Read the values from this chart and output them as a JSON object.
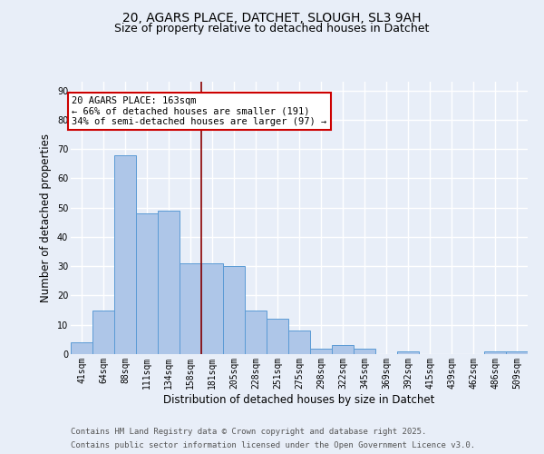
{
  "title1": "20, AGARS PLACE, DATCHET, SLOUGH, SL3 9AH",
  "title2": "Size of property relative to detached houses in Datchet",
  "xlabel": "Distribution of detached houses by size in Datchet",
  "ylabel": "Number of detached properties",
  "bar_labels": [
    "41sqm",
    "64sqm",
    "88sqm",
    "111sqm",
    "134sqm",
    "158sqm",
    "181sqm",
    "205sqm",
    "228sqm",
    "251sqm",
    "275sqm",
    "298sqm",
    "322sqm",
    "345sqm",
    "369sqm",
    "392sqm",
    "415sqm",
    "439sqm",
    "462sqm",
    "486sqm",
    "509sqm"
  ],
  "bar_values": [
    4,
    15,
    68,
    48,
    49,
    31,
    31,
    30,
    15,
    12,
    8,
    2,
    3,
    2,
    0,
    1,
    0,
    0,
    0,
    1,
    1
  ],
  "bar_color": "#aec6e8",
  "bar_edge_color": "#5b9bd5",
  "vline_x": 5.5,
  "vline_color": "#8b0000",
  "annotation_text": "20 AGARS PLACE: 163sqm\n← 66% of detached houses are smaller (191)\n34% of semi-detached houses are larger (97) →",
  "annotation_box_color": "#ffffff",
  "annotation_box_edge_color": "#cc0000",
  "ylim": [
    0,
    93
  ],
  "yticks": [
    0,
    10,
    20,
    30,
    40,
    50,
    60,
    70,
    80,
    90
  ],
  "footer1": "Contains HM Land Registry data © Crown copyright and database right 2025.",
  "footer2": "Contains public sector information licensed under the Open Government Licence v3.0.",
  "plot_bg_color": "#e8eef8",
  "grid_color": "#ffffff",
  "title_fontsize": 10,
  "subtitle_fontsize": 9,
  "axis_label_fontsize": 8.5,
  "tick_fontsize": 7,
  "annotation_fontsize": 7.5,
  "footer_fontsize": 6.5
}
